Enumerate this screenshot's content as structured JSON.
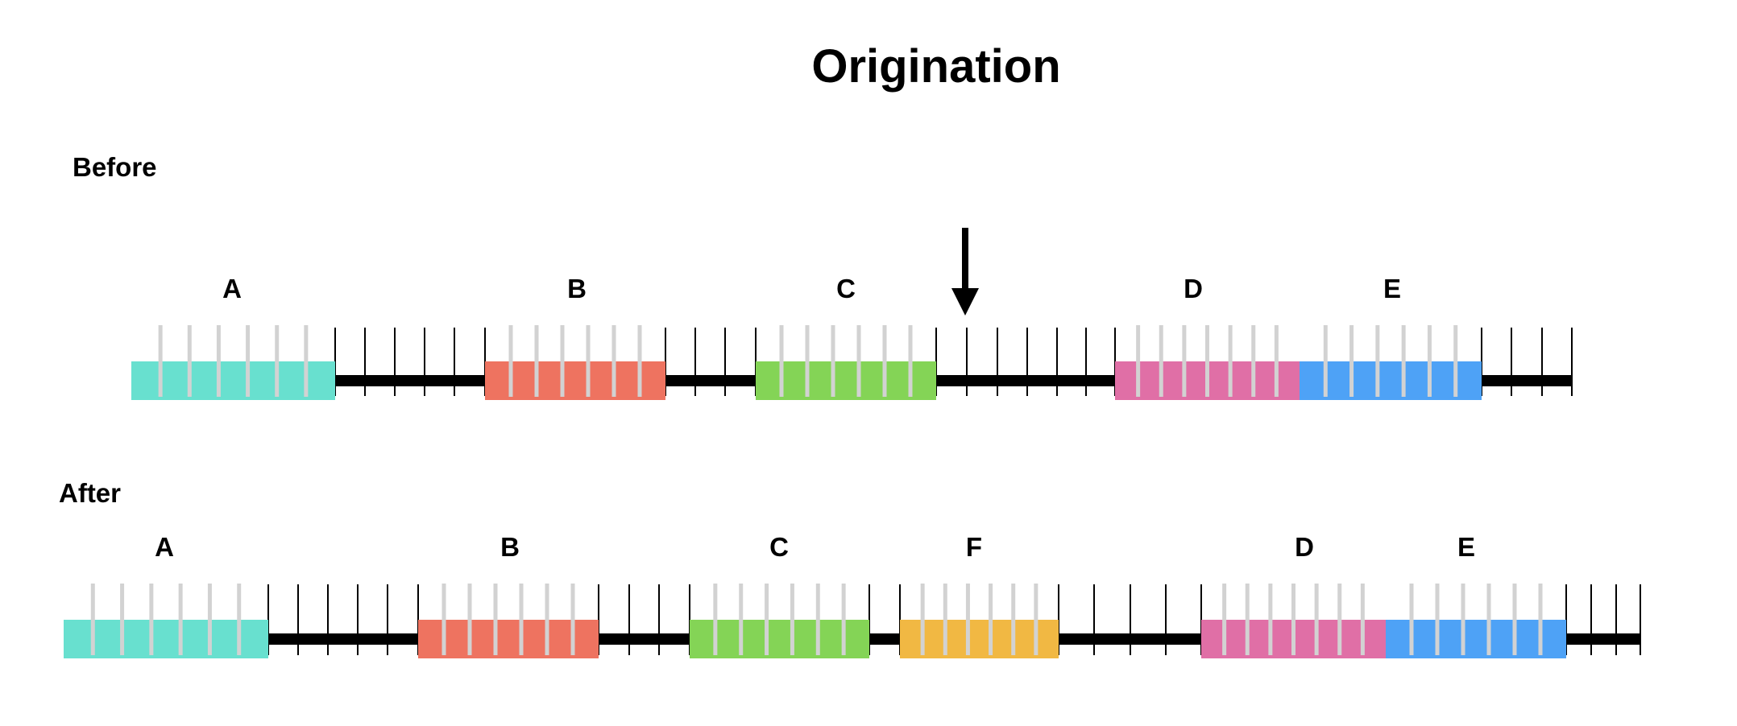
{
  "title": "Origination",
  "colors": {
    "A": "#68e0cf",
    "B": "#ee7360",
    "C": "#84d456",
    "F": "#f1b843",
    "D": "#e06fa6",
    "E": "#4ea2f6",
    "backbone": "#000000",
    "tick": "#000000",
    "gene_tick": "#d2d2d2"
  },
  "before": {
    "label": "Before",
    "genes": [
      {
        "id": "A",
        "label": "A"
      },
      {
        "id": "B",
        "label": "B"
      },
      {
        "id": "C",
        "label": "C"
      },
      {
        "id": "D",
        "label": "D"
      },
      {
        "id": "E",
        "label": "E"
      }
    ],
    "arrow_icon": "down-arrow-icon"
  },
  "after": {
    "label": "After",
    "genes": [
      {
        "id": "A",
        "label": "A"
      },
      {
        "id": "B",
        "label": "B"
      },
      {
        "id": "C",
        "label": "C"
      },
      {
        "id": "F",
        "label": "F"
      },
      {
        "id": "D",
        "label": "D"
      },
      {
        "id": "E",
        "label": "E"
      }
    ]
  }
}
